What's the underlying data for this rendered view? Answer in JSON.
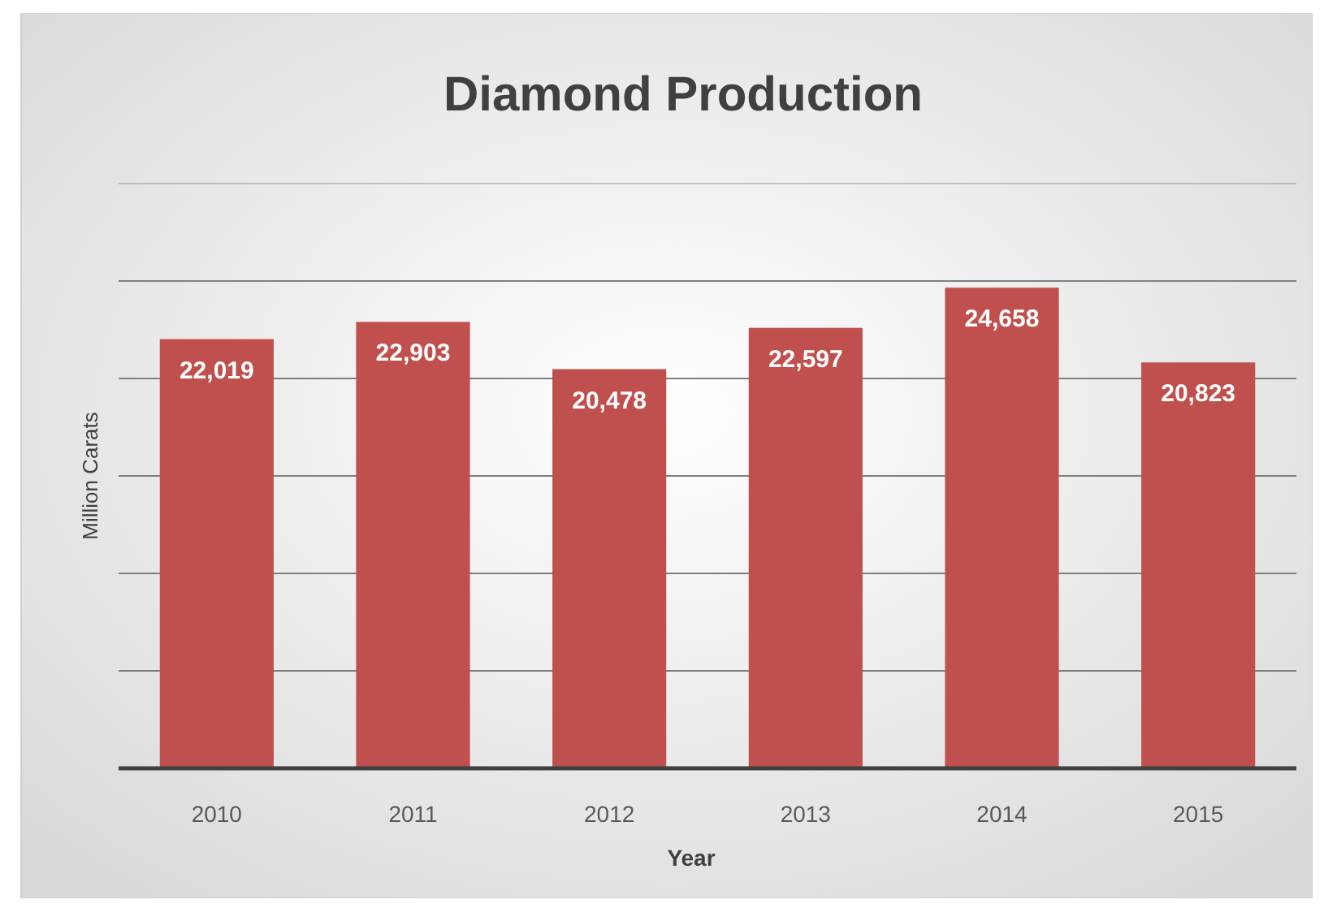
{
  "chart_data": {
    "type": "bar",
    "title": "Diamond Production",
    "xlabel": "Year",
    "ylabel": "Million Carats",
    "categories": [
      "2010",
      "2011",
      "2012",
      "2013",
      "2014",
      "2015"
    ],
    "values": [
      22019,
      22903,
      20478,
      22597,
      24658,
      20823
    ],
    "value_labels": [
      "22,019",
      "22,903",
      "20,478",
      "22,597",
      "24,658",
      "20,823"
    ],
    "color": "#c0504d",
    "ylim": [
      0,
      30000
    ],
    "yticks": [
      {
        "value": 0,
        "label": null
      },
      {
        "value": 5000,
        "label": null
      },
      {
        "value": 10000,
        "label": null
      },
      {
        "value": 15000,
        "label": null
      },
      {
        "value": 20000,
        "label": null
      },
      {
        "value": 25000,
        "label": null
      },
      {
        "value": 30000,
        "label": null
      }
    ],
    "grid": "y",
    "tick_labels": "x"
  }
}
